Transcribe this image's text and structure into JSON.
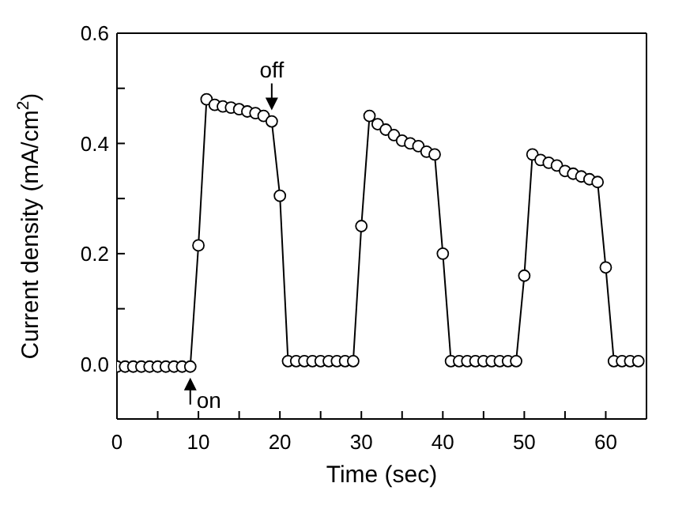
{
  "chart_data": {
    "type": "line",
    "xlabel": "Time (sec)",
    "ylabel": "Current density (mA/cm$^{2}$)",
    "x": [
      0,
      1,
      2,
      3,
      4,
      5,
      6,
      7,
      8,
      9,
      10,
      11,
      12,
      13,
      14,
      15,
      16,
      17,
      18,
      19,
      20,
      21,
      22,
      23,
      24,
      25,
      26,
      27,
      28,
      29,
      30,
      31,
      32,
      33,
      34,
      35,
      36,
      37,
      38,
      39,
      40,
      41,
      42,
      43,
      44,
      45,
      46,
      47,
      48,
      49,
      50,
      51,
      52,
      53,
      54,
      55,
      56,
      57,
      58,
      59,
      60,
      61,
      62,
      63,
      64
    ],
    "series": [
      {
        "color": "#000000",
        "values": [
          -0.005,
          -0.005,
          -0.005,
          -0.005,
          -0.005,
          -0.005,
          -0.005,
          -0.005,
          -0.005,
          -0.005,
          0.215,
          0.48,
          0.47,
          0.467,
          0.465,
          0.462,
          0.458,
          0.455,
          0.45,
          0.44,
          0.305,
          0.005,
          0.005,
          0.005,
          0.005,
          0.005,
          0.005,
          0.005,
          0.005,
          0.005,
          0.25,
          0.45,
          0.435,
          0.425,
          0.415,
          0.405,
          0.4,
          0.395,
          0.385,
          0.38,
          0.2,
          0.005,
          0.005,
          0.005,
          0.005,
          0.005,
          0.005,
          0.005,
          0.005,
          0.005,
          0.16,
          0.38,
          0.37,
          0.365,
          0.36,
          0.35,
          0.345,
          0.34,
          0.335,
          0.33,
          0.175,
          0.005,
          0.005,
          0.005,
          0.005
        ]
      }
    ],
    "marker": "circle",
    "line_style": "solid",
    "grid": false,
    "legend": false,
    "xlim": [
      0,
      65
    ],
    "xticks": [
      0,
      {
        "value": 5,
        "label": null
      },
      10,
      {
        "value": 15,
        "label": null
      },
      20,
      {
        "value": 25,
        "label": null
      },
      30,
      {
        "value": 35,
        "label": null
      },
      40,
      {
        "value": 45,
        "label": null
      },
      50,
      {
        "value": 55,
        "label": null
      },
      60,
      {
        "value": 65,
        "label": null
      }
    ],
    "ylim": [
      -0.1,
      0.6
    ],
    "yticks": [
      {
        "value": -0.1,
        "label": null
      },
      {
        "value": 0,
        "label": "0.0"
      },
      {
        "value": 0.1,
        "label": null
      },
      0.2,
      {
        "value": 0.3,
        "label": null
      },
      0.4,
      {
        "value": 0.5,
        "label": null
      },
      0.6
    ],
    "annotations": [
      {
        "text": "off",
        "x": 19,
        "y": 0.44
      },
      {
        "text": "on",
        "x": 9,
        "y": -0.005
      }
    ]
  }
}
